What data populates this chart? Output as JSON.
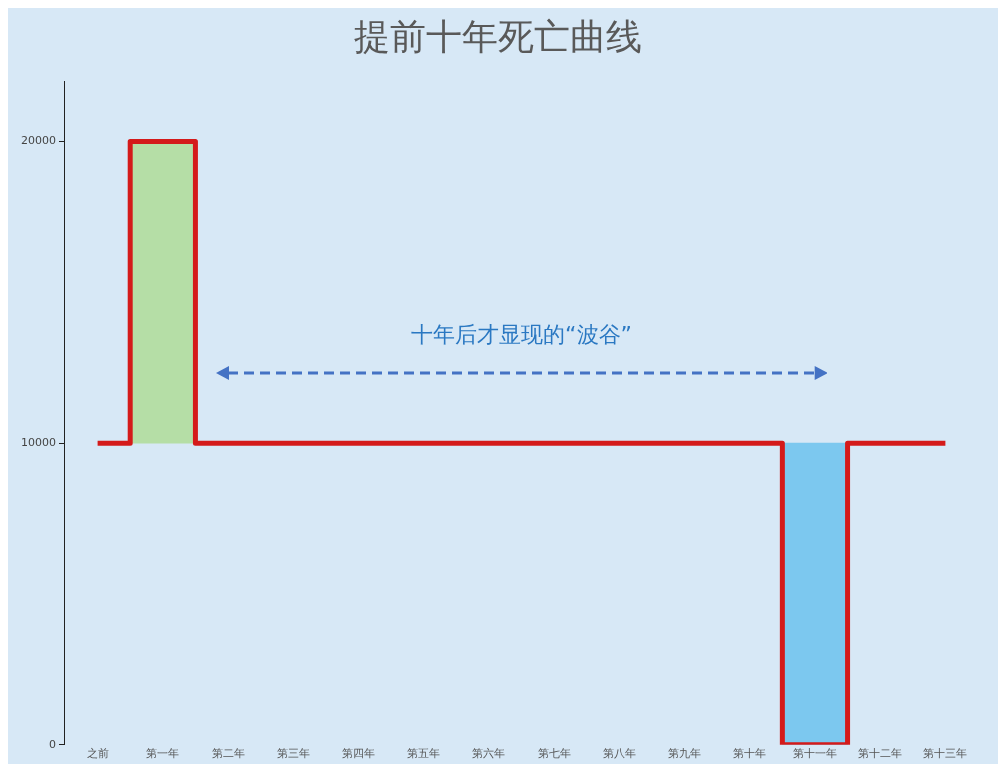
{
  "chart_data": {
    "type": "step",
    "title": "提前十年死亡曲线",
    "categories": [
      "之前",
      "第一年",
      "第二年",
      "第三年",
      "第四年",
      "第五年",
      "第六年",
      "第七年",
      "第八年",
      "第九年",
      "第十年",
      "第十一年",
      "第十二年",
      "第十三年"
    ],
    "ylim": [
      0,
      22000
    ],
    "yticks": [
      0,
      10000,
      20000
    ],
    "grid": false,
    "legend": false,
    "marker": "none",
    "line_style": "solid",
    "annotations": [
      "十年后才显现的“波谷”"
    ],
    "series": [
      {
        "type": "bar",
        "colors": [
          "#b5dea6",
          "#b5dea6",
          "#b5dea6",
          "#b5dea6",
          "#b5dea6",
          "#b5dea6",
          "#b5dea6",
          "#b5dea6",
          "#b5dea6",
          "#b5dea6",
          "#b5dea6",
          "#7cc8ef",
          "#7cc8ef",
          "#7cc8ef"
        ],
        "values": [
          null,
          10000,
          null,
          null,
          null,
          null,
          null,
          null,
          null,
          null,
          null,
          -10000,
          null,
          null
        ],
        "base": [
          null,
          10000,
          null,
          null,
          null,
          null,
          null,
          null,
          null,
          null,
          null,
          10000,
          null,
          null
        ]
      },
      {
        "color": "#d41a1a",
        "values": [
          10000,
          20000,
          10000,
          10000,
          10000,
          10000,
          10000,
          10000,
          10000,
          10000,
          10000,
          0,
          10000,
          10000
        ]
      }
    ]
  }
}
